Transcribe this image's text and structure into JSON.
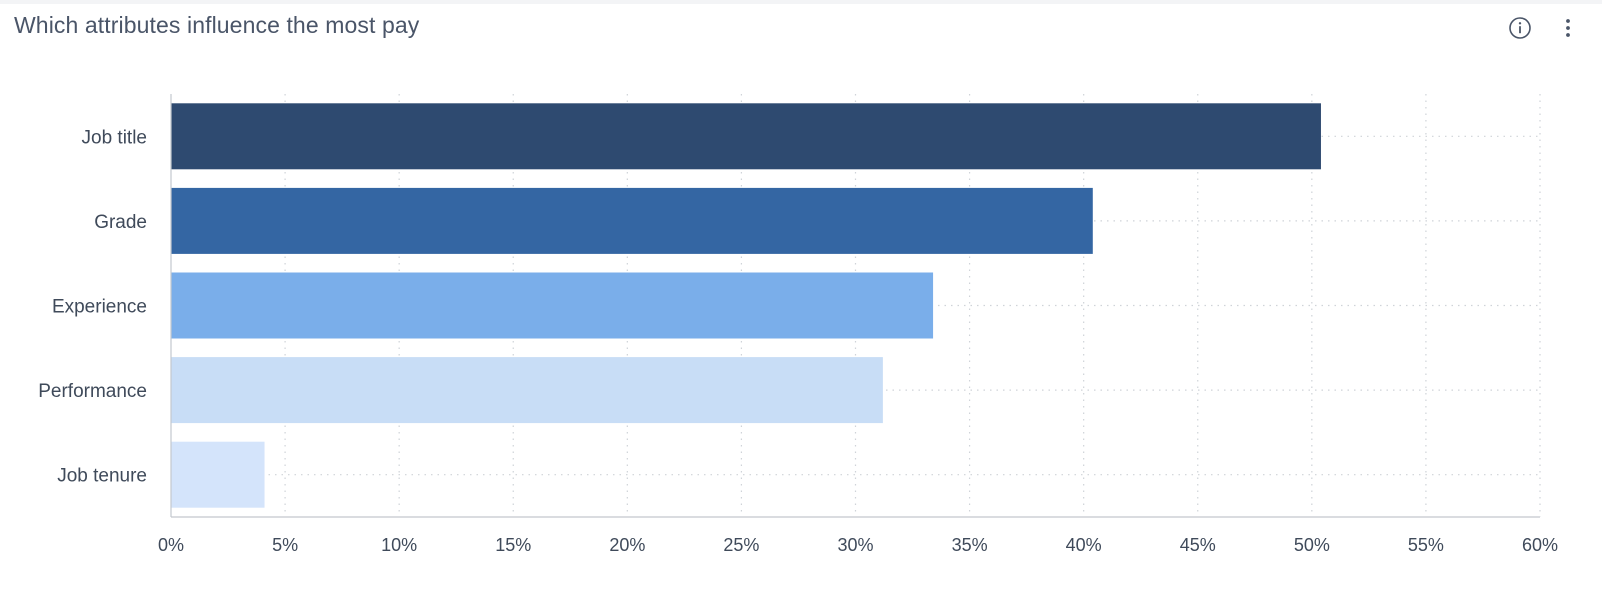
{
  "card": {
    "title": "Which attributes influence the most pay",
    "info_icon": "info-icon",
    "menu_icon": "more-vertical-icon"
  },
  "chart_data": {
    "type": "bar",
    "orientation": "horizontal",
    "categories": [
      "Job title",
      "Grade",
      "Experience",
      "Performance",
      "Job tenure"
    ],
    "values": [
      50.4,
      40.4,
      33.4,
      31.2,
      4.1
    ],
    "colors": [
      "#2e4a70",
      "#3466a3",
      "#7aaeea",
      "#c8ddf6",
      "#d4e4fb"
    ],
    "xlim": [
      0,
      60
    ],
    "x_ticks": [
      "0%",
      "5%",
      "10%",
      "15%",
      "20%",
      "25%",
      "30%",
      "35%",
      "40%",
      "45%",
      "50%",
      "55%",
      "60%"
    ],
    "grid": true,
    "title": "",
    "xlabel": "",
    "ylabel": ""
  }
}
